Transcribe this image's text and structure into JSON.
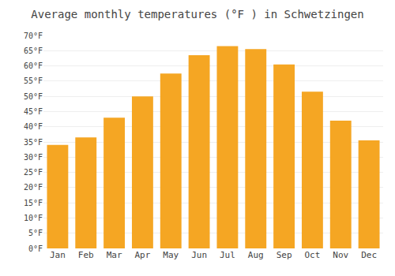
{
  "chart_data": {
    "type": "bar",
    "title": "Average monthly temperatures (°F ) in Schwetzingen",
    "categories": [
      "Jan",
      "Feb",
      "Mar",
      "Apr",
      "May",
      "Jun",
      "Jul",
      "Aug",
      "Sep",
      "Oct",
      "Nov",
      "Dec"
    ],
    "values": [
      34,
      36.5,
      43,
      50,
      57.5,
      63.5,
      66.5,
      65.5,
      60.5,
      51.5,
      42,
      35.5
    ],
    "color": "#F5A623",
    "ylim": [
      0,
      70
    ],
    "yticks": [
      {
        "value": 0,
        "label": "0°F"
      },
      {
        "value": 5,
        "label": "5°F"
      },
      {
        "value": 10,
        "label": "10°F"
      },
      {
        "value": 15,
        "label": "15°F"
      },
      {
        "value": 20,
        "label": "20°F"
      },
      {
        "value": 25,
        "label": "25°F"
      },
      {
        "value": 30,
        "label": "30°F"
      },
      {
        "value": 35,
        "label": "35°F"
      },
      {
        "value": 40,
        "label": "40°F"
      },
      {
        "value": 45,
        "label": "45°F"
      },
      {
        "value": 50,
        "label": "50°F"
      },
      {
        "value": 55,
        "label": "55°F"
      },
      {
        "value": 60,
        "label": "60°F"
      },
      {
        "value": 65,
        "label": "65°F"
      },
      {
        "value": 70,
        "label": "70°F"
      }
    ],
    "grid": true
  }
}
